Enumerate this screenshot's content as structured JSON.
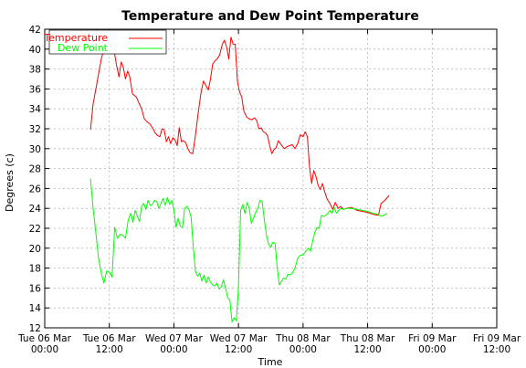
{
  "chart_data": {
    "type": "line",
    "title": "Temperature and Dew Point Temperature",
    "xlabel": "Time",
    "ylabel": "Degrees (c)",
    "ylim": [
      12,
      42
    ],
    "yticks": [
      12,
      14,
      16,
      18,
      20,
      22,
      24,
      26,
      28,
      30,
      32,
      34,
      36,
      38,
      40,
      42
    ],
    "xlim_hours": [
      0,
      84
    ],
    "xticks": [
      {
        "h": 0,
        "line1": "Tue 06 Mar",
        "line2": "00:00"
      },
      {
        "h": 12,
        "line1": "Tue 06 Mar",
        "line2": "12:00"
      },
      {
        "h": 24,
        "line1": "Wed 07 Mar",
        "line2": "00:00"
      },
      {
        "h": 36,
        "line1": "Wed 07 Mar",
        "line2": "12:00"
      },
      {
        "h": 48,
        "line1": "Thu 08 Mar",
        "line2": "00:00"
      },
      {
        "h": 60,
        "line1": "Thu 08 Mar",
        "line2": "12:00"
      },
      {
        "h": 72,
        "line1": "Fri 09 Mar",
        "line2": "00:00"
      },
      {
        "h": 84,
        "line1": "Fri 09 Mar",
        "line2": "12:00"
      }
    ],
    "grid": true,
    "legend_position": "top-left",
    "series": [
      {
        "name": "Temperature",
        "color": "#ff0000",
        "points": [
          [
            8.5,
            31.9
          ],
          [
            9.0,
            34.5
          ],
          [
            9.5,
            36.0
          ],
          [
            10.0,
            37.5
          ],
          [
            10.5,
            39.0
          ],
          [
            11.0,
            40.0
          ],
          [
            11.5,
            41.0
          ],
          [
            12.0,
            41.5
          ],
          [
            12.5,
            40.5
          ],
          [
            13.0,
            39.5
          ],
          [
            13.3,
            38.5
          ],
          [
            13.8,
            37.2
          ],
          [
            14.2,
            38.7
          ],
          [
            14.6,
            38.2
          ],
          [
            15.0,
            37.0
          ],
          [
            15.4,
            37.8
          ],
          [
            15.8,
            37.2
          ],
          [
            16.3,
            35.5
          ],
          [
            17.0,
            35.2
          ],
          [
            17.5,
            34.6
          ],
          [
            18.0,
            34.0
          ],
          [
            18.5,
            33.0
          ],
          [
            19.0,
            32.7
          ],
          [
            19.5,
            32.5
          ],
          [
            20.0,
            32.1
          ],
          [
            20.5,
            31.6
          ],
          [
            21.0,
            31.3
          ],
          [
            21.4,
            31.2
          ],
          [
            21.8,
            32.0
          ],
          [
            22.2,
            31.9
          ],
          [
            22.6,
            30.7
          ],
          [
            23.0,
            31.2
          ],
          [
            23.4,
            30.5
          ],
          [
            23.8,
            31.1
          ],
          [
            24.2,
            30.9
          ],
          [
            24.6,
            30.3
          ],
          [
            25.0,
            32.1
          ],
          [
            25.4,
            30.7
          ],
          [
            25.8,
            30.8
          ],
          [
            26.2,
            30.6
          ],
          [
            26.6,
            30.0
          ],
          [
            27.0,
            29.6
          ],
          [
            27.5,
            29.5
          ],
          [
            28.0,
            31.3
          ],
          [
            28.5,
            33.5
          ],
          [
            29.0,
            35.5
          ],
          [
            29.5,
            36.8
          ],
          [
            30.0,
            36.3
          ],
          [
            30.4,
            35.9
          ],
          [
            30.8,
            37.0
          ],
          [
            31.2,
            38.5
          ],
          [
            31.6,
            38.8
          ],
          [
            32.0,
            39.0
          ],
          [
            32.5,
            39.4
          ],
          [
            33.0,
            40.5
          ],
          [
            33.4,
            40.9
          ],
          [
            33.8,
            40.2
          ],
          [
            34.2,
            39.0
          ],
          [
            34.6,
            41.2
          ],
          [
            35.0,
            40.5
          ],
          [
            35.4,
            40.5
          ],
          [
            35.8,
            36.8
          ],
          [
            36.2,
            35.7
          ],
          [
            36.6,
            35.2
          ],
          [
            37.0,
            33.8
          ],
          [
            37.5,
            33.2
          ],
          [
            38.0,
            33.0
          ],
          [
            38.5,
            32.9
          ],
          [
            39.0,
            33.1
          ],
          [
            39.4,
            32.8
          ],
          [
            39.8,
            32.0
          ],
          [
            40.2,
            32.1
          ],
          [
            40.6,
            31.7
          ],
          [
            41.0,
            31.6
          ],
          [
            41.4,
            31.3
          ],
          [
            41.8,
            30.3
          ],
          [
            42.2,
            29.5
          ],
          [
            42.6,
            29.9
          ],
          [
            43.0,
            30.1
          ],
          [
            43.4,
            30.8
          ],
          [
            43.8,
            30.5
          ],
          [
            44.2,
            30.2
          ],
          [
            44.6,
            30.0
          ],
          [
            45.0,
            30.2
          ],
          [
            45.5,
            30.3
          ],
          [
            46.0,
            30.4
          ],
          [
            46.5,
            30.0
          ],
          [
            47.0,
            30.5
          ],
          [
            47.5,
            31.4
          ],
          [
            48.0,
            31.2
          ],
          [
            48.4,
            31.7
          ],
          [
            48.8,
            31.2
          ],
          [
            49.2,
            28.2
          ],
          [
            49.6,
            26.5
          ],
          [
            50.0,
            27.8
          ],
          [
            50.4,
            27.2
          ],
          [
            50.8,
            26.3
          ],
          [
            51.2,
            25.9
          ],
          [
            51.6,
            26.5
          ],
          [
            52.0,
            25.7
          ],
          [
            52.5,
            24.9
          ],
          [
            53.0,
            24.5
          ],
          [
            53.5,
            23.9
          ],
          [
            54.0,
            24.6
          ],
          [
            54.5,
            24.0
          ],
          [
            55.0,
            24.2
          ],
          [
            55.5,
            23.9
          ],
          [
            56.0,
            24.0
          ],
          [
            57.0,
            24.1
          ],
          [
            58.0,
            23.8
          ],
          [
            59.0,
            23.7
          ],
          [
            60.0,
            23.6
          ],
          [
            61.0,
            23.4
          ],
          [
            62.0,
            23.3
          ],
          [
            62.5,
            24.5
          ],
          [
            63.2,
            24.8
          ],
          [
            64.0,
            25.3
          ]
        ]
      },
      {
        "name": "Dew Point",
        "color": "#00ff00",
        "points": [
          [
            8.5,
            27.0
          ],
          [
            9.0,
            24.0
          ],
          [
            9.5,
            21.5
          ],
          [
            10.0,
            19.0
          ],
          [
            10.5,
            17.5
          ],
          [
            11.0,
            16.5
          ],
          [
            11.5,
            17.7
          ],
          [
            12.0,
            17.6
          ],
          [
            12.5,
            17.1
          ],
          [
            13.0,
            22.1
          ],
          [
            13.5,
            21.0
          ],
          [
            14.0,
            21.4
          ],
          [
            14.5,
            21.3
          ],
          [
            15.0,
            21.0
          ],
          [
            15.5,
            22.8
          ],
          [
            16.0,
            23.5
          ],
          [
            16.4,
            22.6
          ],
          [
            16.8,
            23.8
          ],
          [
            17.2,
            23.2
          ],
          [
            17.6,
            22.7
          ],
          [
            18.0,
            24.2
          ],
          [
            18.4,
            24.5
          ],
          [
            18.8,
            23.9
          ],
          [
            19.2,
            24.8
          ],
          [
            19.6,
            24.3
          ],
          [
            20.0,
            24.4
          ],
          [
            20.4,
            24.8
          ],
          [
            20.8,
            24.7
          ],
          [
            21.2,
            24.0
          ],
          [
            21.6,
            24.5
          ],
          [
            22.0,
            25.0
          ],
          [
            22.4,
            24.3
          ],
          [
            22.8,
            25.1
          ],
          [
            23.2,
            24.4
          ],
          [
            23.6,
            24.8
          ],
          [
            24.0,
            23.9
          ],
          [
            24.4,
            22.1
          ],
          [
            24.8,
            23.0
          ],
          [
            25.2,
            22.2
          ],
          [
            25.6,
            22.1
          ],
          [
            26.0,
            24.0
          ],
          [
            26.4,
            24.2
          ],
          [
            26.8,
            23.9
          ],
          [
            27.2,
            23.1
          ],
          [
            27.6,
            20.2
          ],
          [
            28.0,
            17.7
          ],
          [
            28.4,
            17.2
          ],
          [
            28.8,
            17.5
          ],
          [
            29.2,
            16.7
          ],
          [
            29.6,
            17.3
          ],
          [
            30.0,
            16.5
          ],
          [
            30.4,
            17.1
          ],
          [
            30.8,
            16.6
          ],
          [
            31.2,
            16.3
          ],
          [
            31.6,
            16.2
          ],
          [
            32.0,
            16.5
          ],
          [
            32.4,
            15.9
          ],
          [
            32.8,
            16.1
          ],
          [
            33.2,
            16.8
          ],
          [
            33.6,
            16.0
          ],
          [
            34.0,
            15.0
          ],
          [
            34.4,
            14.8
          ],
          [
            34.8,
            12.6
          ],
          [
            35.2,
            13.0
          ],
          [
            35.6,
            12.7
          ],
          [
            36.0,
            16.0
          ],
          [
            36.4,
            23.8
          ],
          [
            36.8,
            24.4
          ],
          [
            37.2,
            23.5
          ],
          [
            37.6,
            24.6
          ],
          [
            38.0,
            24.0
          ],
          [
            38.4,
            22.5
          ],
          [
            38.8,
            23.0
          ],
          [
            39.2,
            23.6
          ],
          [
            39.6,
            24.0
          ],
          [
            40.0,
            24.8
          ],
          [
            40.4,
            24.7
          ],
          [
            40.8,
            22.9
          ],
          [
            41.2,
            21.3
          ],
          [
            41.6,
            20.4
          ],
          [
            42.0,
            20.1
          ],
          [
            42.4,
            20.6
          ],
          [
            42.8,
            20.5
          ],
          [
            43.2,
            18.0
          ],
          [
            43.6,
            16.3
          ],
          [
            44.0,
            16.7
          ],
          [
            44.4,
            17.0
          ],
          [
            44.8,
            16.9
          ],
          [
            45.2,
            17.4
          ],
          [
            45.6,
            17.3
          ],
          [
            46.0,
            17.5
          ],
          [
            46.5,
            18.0
          ],
          [
            47.0,
            19.0
          ],
          [
            47.5,
            19.3
          ],
          [
            48.0,
            19.3
          ],
          [
            48.5,
            19.7
          ],
          [
            49.0,
            20.0
          ],
          [
            49.4,
            19.7
          ],
          [
            49.8,
            20.8
          ],
          [
            50.2,
            21.6
          ],
          [
            50.6,
            22.1
          ],
          [
            51.0,
            22.0
          ],
          [
            51.4,
            23.3
          ],
          [
            51.8,
            23.2
          ],
          [
            52.2,
            23.3
          ],
          [
            52.6,
            23.5
          ],
          [
            53.0,
            23.8
          ],
          [
            53.4,
            23.5
          ],
          [
            53.8,
            24.1
          ],
          [
            54.2,
            23.5
          ],
          [
            54.6,
            23.8
          ],
          [
            55.0,
            24.0
          ],
          [
            55.5,
            23.9
          ],
          [
            56.0,
            24.0
          ],
          [
            57.0,
            24.0
          ],
          [
            58.0,
            23.9
          ],
          [
            59.0,
            23.8
          ],
          [
            60.0,
            23.7
          ],
          [
            61.0,
            23.5
          ],
          [
            62.0,
            23.4
          ],
          [
            62.5,
            23.2
          ],
          [
            63.0,
            23.3
          ],
          [
            63.6,
            23.5
          ]
        ]
      }
    ]
  }
}
